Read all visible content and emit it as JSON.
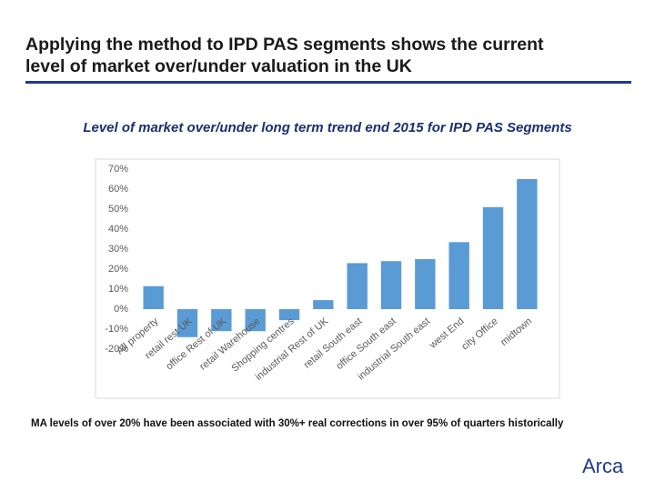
{
  "header": {
    "title_line1": "Applying the method to IPD PAS segments shows the current",
    "title_line2": "level of market over/under valuation in the UK"
  },
  "chart_data": {
    "type": "bar",
    "title": "Level of market over/under long term trend end 2015 for IPD PAS Segments",
    "categories": [
      "All property",
      "retail rest UK",
      "office Rest of UK",
      "retail Warehouse",
      "Shopping centres",
      "industrial Rest of UK",
      "retail South east",
      "office South east",
      "industrial South east",
      "west End",
      "city Office",
      "midtown"
    ],
    "values": [
      11.5,
      -14,
      -11,
      -11,
      -5.5,
      4.5,
      23,
      24,
      25,
      33.5,
      51,
      65
    ],
    "color": "#5b9bd5",
    "ylim": [
      -20,
      70
    ],
    "yticks": [
      {
        "value": -20,
        "label": "-20%"
      },
      {
        "value": -10,
        "label": "-10%"
      },
      {
        "value": 0,
        "label": "0%"
      },
      {
        "value": 10,
        "label": "10%"
      },
      {
        "value": 20,
        "label": "20%"
      },
      {
        "value": 30,
        "label": "30%"
      },
      {
        "value": 40,
        "label": "40%"
      },
      {
        "value": 50,
        "label": "50%"
      },
      {
        "value": 60,
        "label": "60%"
      },
      {
        "value": 70,
        "label": "70%"
      }
    ],
    "grid": false
  },
  "footnote": "MA levels of over 20% have been associated with 30%+ real corrections in over 95% of quarters historically",
  "logo": "Arca"
}
